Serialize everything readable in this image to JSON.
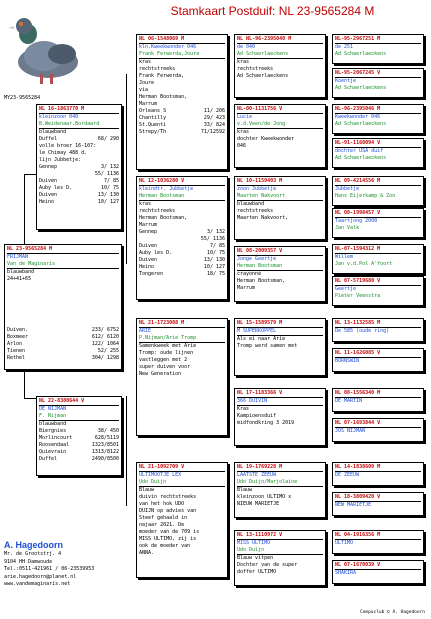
{
  "title": "Stamkaart Postduif: NL  23-9565284 M",
  "photo_caption": "MY23-9565284",
  "subject": {
    "code": "NL",
    "ring": "23-9565284 M",
    "name": "FRIJMAN",
    "line2": "Van de Maginaris",
    "line3": "blauwband",
    "line4": "24+41+65",
    "results": [
      [
        "Duiven.",
        "233/ 6752"
      ],
      [
        "Boxmeer",
        "612/ 6120"
      ],
      [
        "Arlon",
        "122/ 1064"
      ],
      [
        "Tienen",
        "52/ 255"
      ],
      [
        "Rethel",
        "304/ 1298"
      ]
    ]
  },
  "father": {
    "code": "NL",
    "ring": "16-1863770 M",
    "name": "kleinzoon 040",
    "breeder": "B.Weidenaar,Bordaard",
    "lines": [
      "blauwband"
    ],
    "results_a": [
      [
        "Duffel",
        "68/ 290"
      ]
    ],
    "text": [
      "volle broer 16-107:",
      "le Chimay 488 d.",
      "lijn Jubbetje:"
    ],
    "results_b": [
      [
        "Gennep",
        "3/ 132"
      ],
      [
        "",
        "55/ 1136"
      ],
      [
        "Duiven",
        "7/ 85"
      ],
      [
        "Auby les D.",
        "10/ 75"
      ],
      [
        "Duiven",
        "13/ 130"
      ],
      [
        "Heino",
        "10/ 127"
      ]
    ]
  },
  "mother": {
    "code": "NL",
    "ring": "22-8380644 V",
    "name": "DE NIJMAN",
    "breeder": "F. Nijman",
    "lines": [
      "blauwband"
    ],
    "results": [
      [
        "Biergnies",
        "38/ 450"
      ],
      [
        "Morlincourt",
        "628/5119"
      ],
      [
        "Roosendaal",
        "1323/8501"
      ],
      [
        "Quievrain",
        "1313/8122"
      ],
      [
        "Duffel",
        "2490/8500"
      ]
    ]
  },
  "ff": {
    "code": "NL",
    "ring": "06-1548069 M",
    "name": "kln.Kweekwonder 046",
    "breeder": "Frank Ferwerda,Joure",
    "lines": [
      "kras",
      "rechtstreeks",
      "Frank Ferwerda,",
      "Joure",
      "via",
      "Herman Bootsman,",
      "Marrum"
    ],
    "results": [
      [
        "Orleans S",
        "11/ 206"
      ],
      [
        "Chantilly",
        "29/ 423"
      ],
      [
        "St.Quenti",
        "33/ 824"
      ],
      [
        "Strepy/Th",
        "71/12592"
      ]
    ]
  },
  "fm": {
    "code": "NL",
    "ring": "12-1036280 V",
    "name": "kleindtr. Jubbetje",
    "breeder": "Herman Bootsman",
    "lines": [
      "kras",
      "rechtstreeks",
      "Herman Bootsman,",
      "Marrum"
    ],
    "results": [
      [
        "Gennep",
        "3/ 132"
      ],
      [
        "",
        "55/ 1136"
      ],
      [
        "Duiven",
        "7/ 85"
      ],
      [
        "Auby les D.",
        "10/ 75"
      ],
      [
        "Duiven",
        "13/ 130"
      ],
      [
        "Heino",
        "10/ 127"
      ],
      [
        "Tongeren",
        "18/ 75"
      ]
    ]
  },
  "mf": {
    "code": "NL",
    "ring": "21-1723088 M",
    "name": "ARIE",
    "breeder": "P.Nijman/Arie Tromp",
    "lines": [
      "",
      "Samenkweek met Arie",
      "Tromp: oude lijnen",
      "vastleggen met 2",
      "super duiven voor",
      "New Generation"
    ]
  },
  "mm": {
    "code": "NL",
    "ring": "21-1092709 V",
    "name": "ULTIMOOTJE LEX",
    "breeder": "Udo Duijn",
    "lines": [
      "Blauw",
      "duivin rechtstreeks",
      "van het hok UDO",
      "DUIJN op advies van",
      "Steef gehaald in",
      "najaar 2021. De",
      "moeder van de 709 is",
      "MISS ULTIMO, zij is",
      "ook de moeder van",
      "ANNA."
    ]
  },
  "fff": {
    "code": "NL",
    "ring": "NL-96-2395040 M",
    "name": "de 040",
    "breeder": "Ad Schaerlaeckens",
    "lines": [
      "kras",
      "rechtstreeks",
      "Ad Schaerlaeckens"
    ]
  },
  "ffm": {
    "code": "",
    "ring": "NL-00-1131756 V",
    "name": "Lucie",
    "breeder": "v.d.Veen/de Jong",
    "lines": [
      "kras",
      "dochter Kweekwonder",
      "046"
    ]
  },
  "fmf": {
    "code": "NL",
    "ring": "10-1159403 M",
    "name": "zoon Jubbetje",
    "breeder": "Maarten Nakvoort",
    "lines": [
      "blauwband",
      "rechtstreeks",
      "Maarten Nakvoort,"
    ]
  },
  "fmm": {
    "code": "NL",
    "ring": "08-2009357 V",
    "name": "Jonge Geertje",
    "breeder": "Herman Bootsman",
    "lines": [
      "crayonné",
      "Herman Bootsman,",
      "Marrum"
    ]
  },
  "mff": {
    "code": "NL",
    "ring": "15-1589579 M",
    "name": "M SUPERKOPPEL",
    "breeder": "",
    "lines": [
      "",
      "Als ei naar Arie",
      "Tromp werd samen met"
    ]
  },
  "mfm": {
    "code": "NL",
    "ring": "17-1183366 V",
    "name": "366 DUIVIN",
    "breeder": "",
    "lines": [
      "",
      "Kras",
      "Kampioensduif",
      "midfondkring 3 2019"
    ]
  },
  "mmf": {
    "code": "NL",
    "ring": "19-1769228 M",
    "name": "LAATSTE ZEEUW",
    "breeder": "Udo Duijn/Marjolaine",
    "lines": [
      "Blauw",
      "kleinzoon ULTIMO x",
      "NIEUW MARIETJE"
    ]
  },
  "mmm": {
    "code": "NL",
    "ring": "13-1110972 V",
    "name": "MISS ULTIMO",
    "breeder": "Udo Duijn",
    "lines": [
      "Blauw vitpen",
      "Dochter van de super",
      "doffer ULTIMO"
    ]
  },
  "g4": [
    {
      "ring": "NL-95-2967251 M",
      "name": "de 251",
      "breeder": "Ad Schaerlaeckens"
    },
    {
      "ring": "NL-95-2067245 V",
      "name": "Koentje",
      "breeder": "Ad Schaerlaeckens"
    },
    {
      "ring": "NL-96-2395046 M",
      "name": "Kweekwonder 046",
      "breeder": "Ad Schaerlaeckens"
    },
    {
      "ring": "NL-91-1160094 V",
      "name": "dochter USA duif",
      "breeder": "Ad Schaerlaeckens"
    },
    {
      "ring": "NL  09-4214556 M",
      "name": "Jubbetje",
      "breeder": "Hans Eijerkamp & Zon"
    },
    {
      "ring": "NL  08-1998457 V",
      "name": "Taartjong 2008",
      "breeder": "Jan Valk"
    },
    {
      "ring": "NL-07-1594312 M",
      "name": "Willem",
      "breeder": "Jan v.d.Pol A'foort"
    },
    {
      "ring": "NL  07-5719680 V",
      "name": "Geertje",
      "breeder": "Pieter Veenstra"
    },
    {
      "ring": "NL  13-1132585 M",
      "name": "De 585 (oude ring)",
      "breeder": ""
    },
    {
      "ring": "NL  11-1626085 V",
      "name": "BORNSWIN",
      "breeder": ""
    },
    {
      "ring": "NL  08-1556340 M",
      "name": "DE MARTIN",
      "breeder": ""
    },
    {
      "ring": "NL  07-1693844 V",
      "name": "JOS NIJMAN",
      "breeder": ""
    },
    {
      "ring": "NL  14-1838609 M",
      "name": "DE ZEEUW",
      "breeder": ""
    },
    {
      "ring": "NL  18-3809420 V",
      "name": "NEW MARIETJE",
      "breeder": ""
    },
    {
      "ring": "NL  04-1916356 M",
      "name": "ULTIMO",
      "breeder": ""
    },
    {
      "ring": "NL  07-1670039 V",
      "name": "SHAKIRA",
      "breeder": ""
    }
  ],
  "owner": {
    "name": "A. Hagedoorn",
    "lines": [
      "Mr. de Grootstrj. 4",
      "9104 HH  Damwoude",
      "Tel.:0511-421961 / 06-23539953",
      "arie.hagedoorn@planet.nl",
      "www.vandemaginaris.net"
    ]
  },
  "footer": "Compuclub © A. Hagedoorn",
  "colors": {
    "ring": "#c00000",
    "name": "#1f4fd8",
    "breeder": "#1a8f2a",
    "title": "#c00000"
  }
}
